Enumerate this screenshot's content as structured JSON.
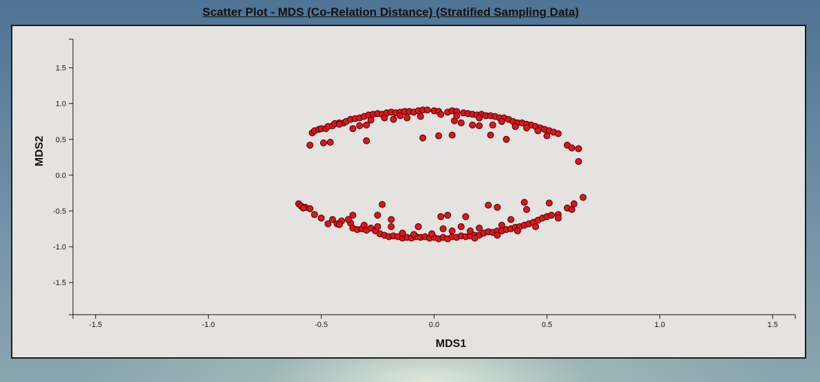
{
  "chart_data": {
    "type": "scatter",
    "title": "Scatter Plot - MDS (Co-Relation Distance) (Stratified Sampling Data)",
    "xlabel": "MDS1",
    "ylabel": "MDS2",
    "xlim": [
      -1.6,
      1.6
    ],
    "ylim": [
      -1.95,
      1.9
    ],
    "xticks": [
      {
        "value": -1.5,
        "label": "-1.5"
      },
      {
        "value": -1.0,
        "label": "-1.0"
      },
      {
        "value": -0.5,
        "label": "-0.5"
      },
      {
        "value": 0.0,
        "label": "0.0"
      },
      {
        "value": 0.5,
        "label": "0.5"
      },
      {
        "value": 1.0,
        "label": "1.0"
      },
      {
        "value": 1.5,
        "label": "1.5"
      }
    ],
    "yticks": [
      {
        "value": 1.5,
        "label": "1.5"
      },
      {
        "value": 1.0,
        "label": "1.0"
      },
      {
        "value": 0.5,
        "label": "0.5"
      },
      {
        "value": 0.0,
        "label": "0.0"
      },
      {
        "value": -0.5,
        "label": "-0.5"
      },
      {
        "value": -1.0,
        "label": "-1.0"
      },
      {
        "value": -1.5,
        "label": "-1.5"
      }
    ],
    "grid": false,
    "legend": "none",
    "marker_color": "#e0141b",
    "marker_edge_color": "#3a0000",
    "series": [
      {
        "points": [
          [
            -0.55,
            0.42
          ],
          [
            -0.54,
            0.59
          ],
          [
            -0.53,
            0.62
          ],
          [
            -0.51,
            0.64
          ],
          [
            -0.5,
            0.65
          ],
          [
            -0.48,
            0.65
          ],
          [
            -0.47,
            0.68
          ],
          [
            -0.45,
            0.69
          ],
          [
            -0.44,
            0.72
          ],
          [
            -0.42,
            0.73
          ],
          [
            -0.4,
            0.73
          ],
          [
            -0.39,
            0.75
          ],
          [
            -0.37,
            0.78
          ],
          [
            -0.35,
            0.79
          ],
          [
            -0.33,
            0.8
          ],
          [
            -0.31,
            0.82
          ],
          [
            -0.29,
            0.84
          ],
          [
            -0.27,
            0.85
          ],
          [
            -0.25,
            0.86
          ],
          [
            -0.23,
            0.85
          ],
          [
            -0.21,
            0.87
          ],
          [
            -0.19,
            0.88
          ],
          [
            -0.17,
            0.87
          ],
          [
            -0.15,
            0.88
          ],
          [
            -0.13,
            0.89
          ],
          [
            -0.11,
            0.89
          ],
          [
            -0.09,
            0.88
          ],
          [
            -0.07,
            0.9
          ],
          [
            -0.05,
            0.91
          ],
          [
            -0.03,
            0.91
          ],
          [
            0.0,
            0.9
          ],
          [
            0.02,
            0.89
          ],
          [
            0.06,
            0.88
          ],
          [
            0.08,
            0.9
          ],
          [
            0.1,
            0.89
          ],
          [
            0.13,
            0.87
          ],
          [
            0.15,
            0.86
          ],
          [
            0.17,
            0.85
          ],
          [
            0.19,
            0.84
          ],
          [
            0.21,
            0.85
          ],
          [
            0.23,
            0.83
          ],
          [
            0.25,
            0.83
          ],
          [
            0.27,
            0.82
          ],
          [
            0.29,
            0.8
          ],
          [
            0.31,
            0.8
          ],
          [
            0.33,
            0.78
          ],
          [
            0.35,
            0.75
          ],
          [
            0.37,
            0.73
          ],
          [
            0.39,
            0.73
          ],
          [
            0.41,
            0.71
          ],
          [
            0.43,
            0.7
          ],
          [
            0.45,
            0.68
          ],
          [
            0.47,
            0.66
          ],
          [
            0.49,
            0.64
          ],
          [
            0.51,
            0.62
          ],
          [
            0.53,
            0.6
          ],
          [
            0.55,
            0.58
          ],
          [
            0.59,
            0.42
          ],
          [
            0.61,
            0.38
          ],
          [
            0.64,
            0.37
          ],
          [
            0.64,
            0.19
          ],
          [
            -0.49,
            0.45
          ],
          [
            -0.46,
            0.46
          ],
          [
            -0.3,
            0.48
          ],
          [
            -0.05,
            0.52
          ],
          [
            0.02,
            0.55
          ],
          [
            0.08,
            0.56
          ],
          [
            0.25,
            0.56
          ],
          [
            0.32,
            0.5
          ],
          [
            0.5,
            0.55
          ],
          [
            -0.36,
            0.65
          ],
          [
            -0.33,
            0.69
          ],
          [
            -0.3,
            0.7
          ],
          [
            -0.22,
            0.8
          ],
          [
            -0.18,
            0.78
          ],
          [
            -0.12,
            0.8
          ],
          [
            -0.06,
            0.82
          ],
          [
            0.03,
            0.85
          ],
          [
            0.09,
            0.76
          ],
          [
            0.12,
            0.73
          ],
          [
            0.17,
            0.7
          ],
          [
            0.2,
            0.69
          ],
          [
            0.26,
            0.7
          ],
          [
            0.3,
            0.75
          ],
          [
            0.36,
            0.68
          ],
          [
            0.41,
            0.66
          ],
          [
            0.46,
            0.62
          ],
          [
            -0.42,
            0.71
          ],
          [
            -0.28,
            0.77
          ],
          [
            -0.15,
            0.83
          ],
          [
            0.1,
            0.83
          ],
          [
            0.2,
            0.8
          ],
          [
            -0.6,
            -0.4
          ],
          [
            -0.59,
            -0.43
          ],
          [
            -0.57,
            -0.45
          ],
          [
            -0.55,
            -0.47
          ],
          [
            -0.53,
            -0.55
          ],
          [
            -0.47,
            -0.68
          ],
          [
            -0.45,
            -0.62
          ],
          [
            -0.43,
            -0.68
          ],
          [
            -0.41,
            -0.64
          ],
          [
            -0.37,
            -0.67
          ],
          [
            -0.36,
            -0.74
          ],
          [
            -0.34,
            -0.76
          ],
          [
            -0.32,
            -0.75
          ],
          [
            -0.3,
            -0.77
          ],
          [
            -0.28,
            -0.74
          ],
          [
            -0.26,
            -0.78
          ],
          [
            -0.24,
            -0.82
          ],
          [
            -0.22,
            -0.84
          ],
          [
            -0.2,
            -0.86
          ],
          [
            -0.18,
            -0.85
          ],
          [
            -0.16,
            -0.86
          ],
          [
            -0.14,
            -0.88
          ],
          [
            -0.12,
            -0.87
          ],
          [
            -0.1,
            -0.88
          ],
          [
            -0.08,
            -0.86
          ],
          [
            -0.06,
            -0.87
          ],
          [
            -0.04,
            -0.86
          ],
          [
            -0.02,
            -0.88
          ],
          [
            0.0,
            -0.87
          ],
          [
            0.02,
            -0.89
          ],
          [
            0.04,
            -0.87
          ],
          [
            0.06,
            -0.89
          ],
          [
            0.08,
            -0.86
          ],
          [
            0.1,
            -0.87
          ],
          [
            0.12,
            -0.85
          ],
          [
            0.14,
            -0.86
          ],
          [
            0.16,
            -0.85
          ],
          [
            0.18,
            -0.84
          ],
          [
            0.2,
            -0.84
          ],
          [
            0.22,
            -0.81
          ],
          [
            0.24,
            -0.79
          ],
          [
            0.26,
            -0.8
          ],
          [
            0.28,
            -0.78
          ],
          [
            0.3,
            -0.78
          ],
          [
            0.32,
            -0.76
          ],
          [
            0.34,
            -0.75
          ],
          [
            0.36,
            -0.73
          ],
          [
            0.38,
            -0.72
          ],
          [
            0.4,
            -0.7
          ],
          [
            0.42,
            -0.68
          ],
          [
            0.44,
            -0.66
          ],
          [
            0.46,
            -0.63
          ],
          [
            0.48,
            -0.6
          ],
          [
            0.5,
            -0.58
          ],
          [
            0.52,
            -0.56
          ],
          [
            0.55,
            -0.55
          ],
          [
            0.59,
            -0.46
          ],
          [
            0.61,
            -0.48
          ],
          [
            0.66,
            -0.31
          ],
          [
            -0.23,
            -0.41
          ],
          [
            -0.25,
            -0.56
          ],
          [
            -0.19,
            -0.62
          ],
          [
            -0.36,
            -0.56
          ],
          [
            0.06,
            -0.56
          ],
          [
            0.03,
            -0.58
          ],
          [
            0.14,
            -0.58
          ],
          [
            0.24,
            -0.42
          ],
          [
            0.28,
            -0.45
          ],
          [
            0.4,
            -0.38
          ],
          [
            0.41,
            -0.48
          ],
          [
            0.51,
            -0.39
          ],
          [
            0.34,
            -0.62
          ],
          [
            -0.25,
            -0.72
          ],
          [
            -0.19,
            -0.72
          ],
          [
            -0.07,
            -0.72
          ],
          [
            0.04,
            -0.75
          ],
          [
            0.12,
            -0.72
          ],
          [
            0.2,
            -0.74
          ],
          [
            0.3,
            -0.7
          ],
          [
            -0.38,
            -0.62
          ],
          [
            -0.31,
            -0.7
          ],
          [
            -0.14,
            -0.81
          ],
          [
            0.08,
            -0.78
          ],
          [
            0.16,
            -0.78
          ],
          [
            -0.09,
            -0.83
          ],
          [
            -0.42,
            -0.69
          ],
          [
            0.45,
            -0.72
          ],
          [
            0.37,
            -0.78
          ],
          [
            -0.5,
            -0.6
          ],
          [
            0.62,
            -0.4
          ],
          [
            -0.58,
            -0.46
          ],
          [
            0.55,
            -0.6
          ],
          [
            0.28,
            -0.84
          ],
          [
            -0.01,
            -0.82
          ],
          [
            0.18,
            -0.88
          ]
        ]
      }
    ]
  }
}
